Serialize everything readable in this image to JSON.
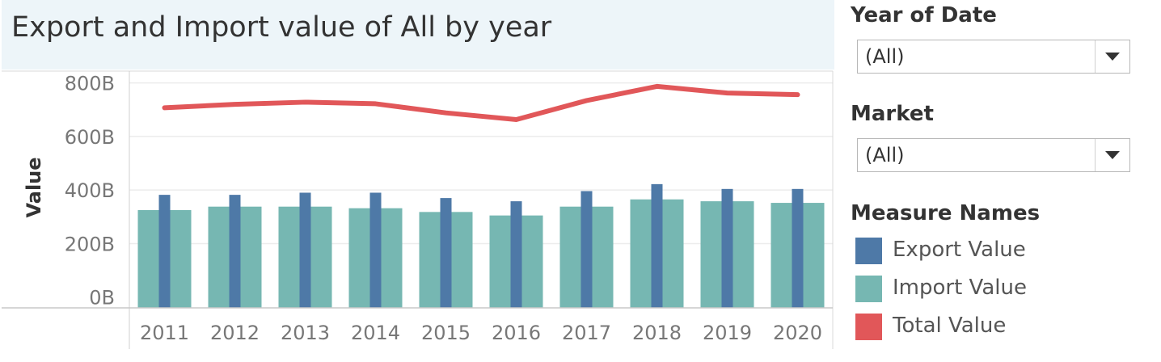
{
  "title": "Export and Import value of All by year",
  "filters": {
    "year": {
      "label": "Year of Date",
      "value": "(All)"
    },
    "market": {
      "label": "Market",
      "value": "(All)"
    }
  },
  "legend": {
    "title": "Measure Names",
    "items": [
      {
        "label": "Export Value",
        "color": "#4e79a7"
      },
      {
        "label": "Import Value",
        "color": "#76b7b2"
      },
      {
        "label": "Total Value",
        "color": "#e15759"
      }
    ]
  },
  "chart_data": {
    "type": "bar",
    "title": "Export and Import value of All by year",
    "xlabel": "",
    "ylabel": "Value",
    "ylim": [
      -40,
      850
    ],
    "y_ticks": [
      0,
      200,
      400,
      600,
      800
    ],
    "y_tick_labels": [
      "0B",
      "200B",
      "400B",
      "600B",
      "800B"
    ],
    "grid": true,
    "legend_position": "right",
    "categories": [
      "2011",
      "2012",
      "2013",
      "2014",
      "2015",
      "2016",
      "2017",
      "2018",
      "2019",
      "2020"
    ],
    "series": [
      {
        "name": "Export Value",
        "type": "bar",
        "color": "#4e79a7",
        "values": [
          382,
          382,
          390,
          390,
          370,
          358,
          396,
          422,
          404,
          404
        ]
      },
      {
        "name": "Import Value",
        "type": "bar",
        "color": "#76b7b2",
        "values": [
          325,
          338,
          338,
          332,
          318,
          305,
          338,
          365,
          358,
          352
        ]
      },
      {
        "name": "Total Value",
        "type": "line",
        "color": "#e15759",
        "values": [
          707,
          720,
          728,
          722,
          688,
          663,
          734,
          787,
          762,
          756
        ]
      }
    ]
  }
}
